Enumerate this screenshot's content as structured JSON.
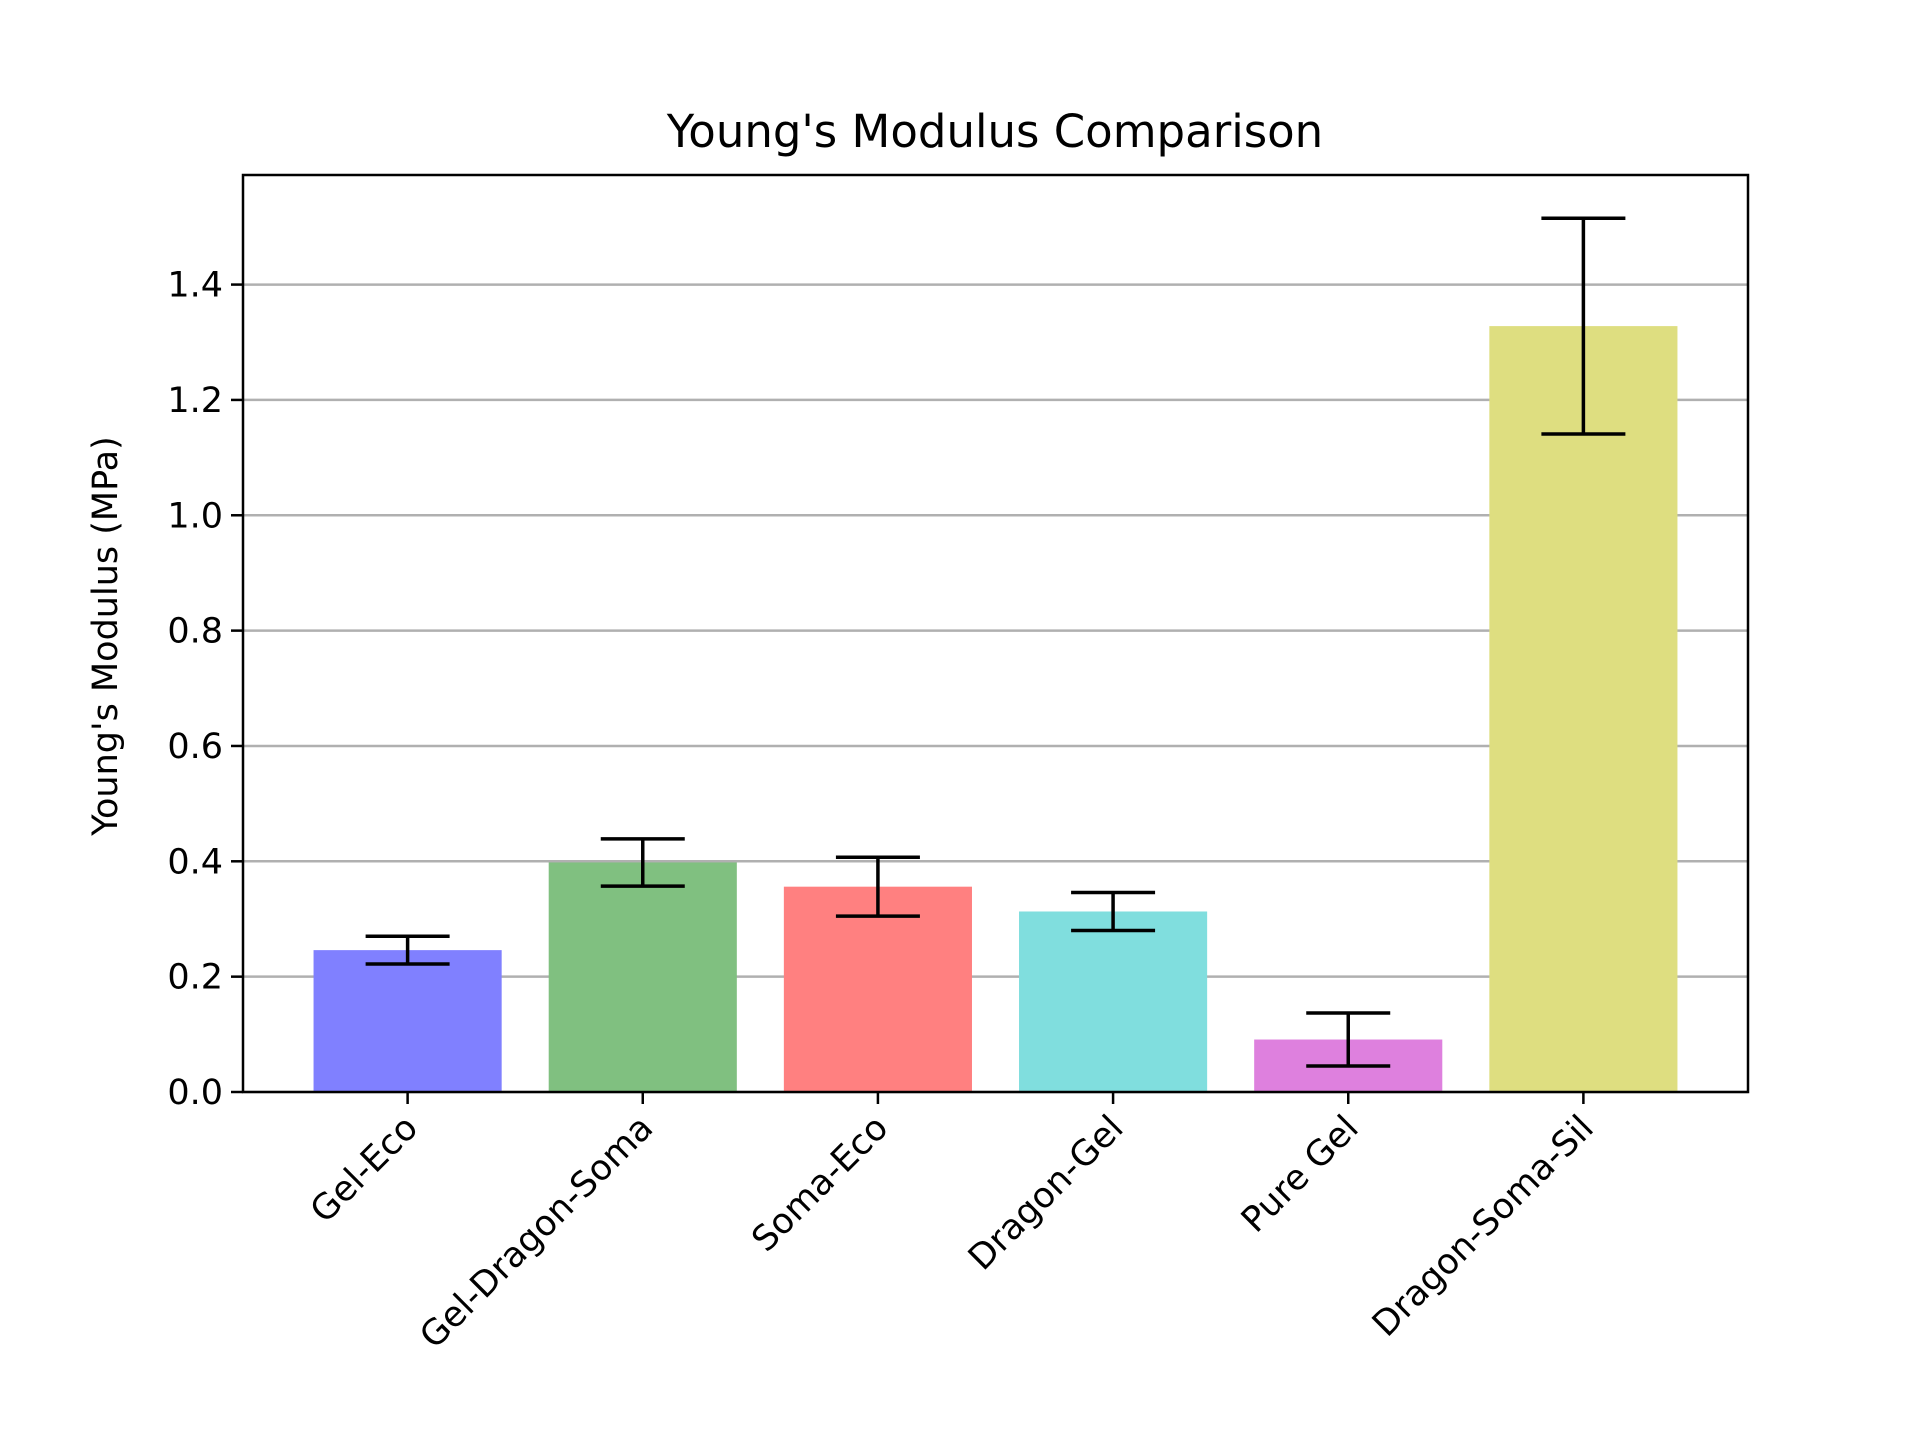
{
  "chart_data": {
    "type": "bar",
    "title": "Young's Modulus Comparison",
    "xlabel": "",
    "ylabel": "Young's Modulus (MPa)",
    "ylim": [
      0,
      1.59
    ],
    "yticks": [
      0.0,
      0.2,
      0.4,
      0.6,
      0.8,
      1.0,
      1.2,
      1.4
    ],
    "ytick_labels": [
      "0.0",
      "0.2",
      "0.4",
      "0.6",
      "0.8",
      "1.0",
      "1.2",
      "1.4"
    ],
    "grid": "y",
    "categories": [
      "Gel-Eco",
      "Gel-Dragon-Soma",
      "Soma-Eco",
      "Dragon-Gel",
      "Pure Gel",
      "Dragon-Soma-Sil"
    ],
    "values": [
      0.246,
      0.398,
      0.356,
      0.313,
      0.091,
      1.328
    ],
    "errors": [
      0.024,
      0.041,
      0.051,
      0.033,
      0.046,
      0.187
    ],
    "colors": [
      "#8080ff",
      "#80c080",
      "#ff8080",
      "#80dede",
      "#de80de",
      "#dede80"
    ]
  }
}
